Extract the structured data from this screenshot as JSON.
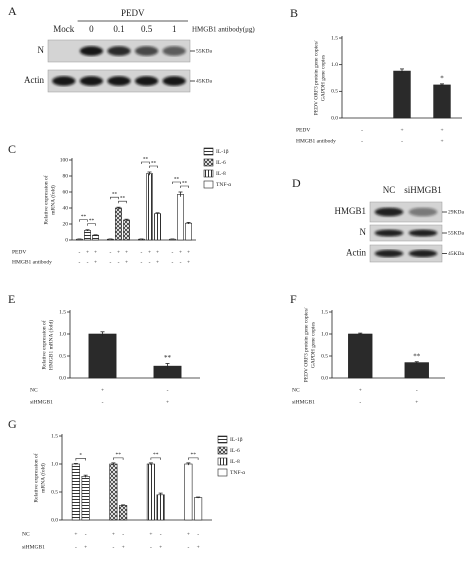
{
  "panels": {
    "A": {
      "label": "A",
      "group": "PEDV",
      "lanes": [
        "Mock",
        "0",
        "0.1",
        "0.5",
        "1"
      ],
      "lane_title": "HMGB1 antibody(μg)",
      "bands": [
        {
          "name": "N",
          "size": "55KDa"
        },
        {
          "name": "Actin",
          "size": "45KDa"
        }
      ]
    },
    "D": {
      "label": "D",
      "lanes": [
        "NC",
        "siHMGB1"
      ],
      "bands": [
        {
          "name": "HMGB1",
          "size": "29KDa"
        },
        {
          "name": "N",
          "size": "55KDa"
        },
        {
          "name": "Actin",
          "size": "45KDa"
        }
      ]
    }
  },
  "chart_data": [
    {
      "type": "bar",
      "label": "B",
      "ylabel": [
        "PEDV ORF3 protein gene copies/",
        "GAPDH gene copies"
      ],
      "values": [
        0,
        0.88,
        0.62
      ],
      "errors": [
        0,
        0.04,
        0.02
      ],
      "color": "#2a2a2a",
      "annotations": [
        null,
        null,
        "*"
      ],
      "ylim": [
        0,
        1.5
      ],
      "yticks": [
        {
          "value": 0,
          "label": "0.0"
        },
        {
          "value": 0.5,
          "label": "0.5"
        },
        {
          "value": 1,
          "label": "1.0"
        },
        {
          "value": 1.5,
          "label": "1.5"
        }
      ],
      "rows": [
        {
          "name": "PEDV",
          "labels": [
            "-",
            "+",
            "+"
          ]
        },
        {
          "name": "HMGB1 antibody",
          "labels": [
            "-",
            "-",
            "+"
          ]
        }
      ]
    },
    {
      "type": "grouped_bar",
      "label": "C",
      "ylabel": [
        "Relative expression of",
        "mRNA (fold)"
      ],
      "series": [
        {
          "name": "IL-1β",
          "pattern": "hlines",
          "values": [
            1,
            12,
            6
          ],
          "errors": [
            0.3,
            0.8,
            0.5
          ],
          "annotations": [
            "**",
            "**"
          ]
        },
        {
          "name": "IL-6",
          "pattern": "cross",
          "values": [
            1,
            40,
            25
          ],
          "errors": [
            0.3,
            1,
            1
          ],
          "annotations": [
            "**",
            "**"
          ]
        },
        {
          "name": "IL-8",
          "pattern": "vlines",
          "values": [
            1,
            83,
            33
          ],
          "errors": [
            0.3,
            2,
            1
          ],
          "annotations": [
            "**",
            "**"
          ]
        },
        {
          "name": "TNF-α",
          "pattern": "none",
          "values": [
            1,
            57,
            21
          ],
          "errors": [
            0.3,
            3,
            1
          ],
          "annotations": [
            "**",
            "**"
          ]
        }
      ],
      "ylim": [
        0,
        100
      ],
      "yticks": [
        0,
        20,
        40,
        60,
        80,
        100
      ],
      "rows": [
        {
          "name": "PEDV",
          "labels": [
            "-",
            "+",
            "+"
          ]
        },
        {
          "name": "HMGB1 antibody",
          "labels": [
            "-",
            "-",
            "+"
          ]
        }
      ]
    },
    {
      "type": "bar",
      "label": "E",
      "ylabel": [
        "Relative expression of",
        "HMGB1 mRNA (fold)"
      ],
      "values": [
        1.0,
        0.27
      ],
      "errors": [
        0.05,
        0.06
      ],
      "color": "#2a2a2a",
      "annotations": [
        null,
        "**"
      ],
      "ylim": [
        0,
        1.5
      ],
      "yticks": [
        {
          "value": 0,
          "label": "0.0"
        },
        {
          "value": 0.5,
          "label": "0.5"
        },
        {
          "value": 1,
          "label": "1.0"
        },
        {
          "value": 1.5,
          "label": "1.5"
        }
      ],
      "rows": [
        {
          "name": "NC",
          "labels": [
            "+",
            "-"
          ]
        },
        {
          "name": "siHMGB1",
          "labels": [
            "-",
            "+"
          ]
        }
      ]
    },
    {
      "type": "bar",
      "label": "F",
      "ylabel": [
        "PEDV ORF3 protein gene copies/",
        "GAPDH gene copies"
      ],
      "values": [
        1.0,
        0.35
      ],
      "errors": [
        0.02,
        0.02
      ],
      "color": "#2a2a2a",
      "annotations": [
        null,
        "**"
      ],
      "ylim": [
        0,
        1.5
      ],
      "yticks": [
        {
          "value": 0,
          "label": "0.0"
        },
        {
          "value": 0.5,
          "label": "0.5"
        },
        {
          "value": 1,
          "label": "1.0"
        },
        {
          "value": 1.5,
          "label": "1.5"
        }
      ],
      "rows": [
        {
          "name": "NC",
          "labels": [
            "+",
            "-"
          ]
        },
        {
          "name": "siHMGB1",
          "labels": [
            "-",
            "+"
          ]
        }
      ]
    },
    {
      "type": "grouped_bar",
      "label": "G",
      "ylabel": [
        "Relative expression of",
        "mRNA (fold)"
      ],
      "series": [
        {
          "name": "IL-1β",
          "pattern": "hlines",
          "values": [
            1.0,
            0.78
          ],
          "errors": [
            0.01,
            0.02
          ],
          "annotations": [
            "*"
          ]
        },
        {
          "name": "IL-6",
          "pattern": "cross",
          "values": [
            1.0,
            0.26
          ],
          "errors": [
            0.02,
            0.01
          ],
          "annotations": [
            "**"
          ]
        },
        {
          "name": "IL-8",
          "pattern": "vlines",
          "values": [
            1.0,
            0.45
          ],
          "errors": [
            0.02,
            0.03
          ],
          "annotations": [
            "**"
          ]
        },
        {
          "name": "TNF-α",
          "pattern": "none",
          "values": [
            1.0,
            0.4
          ],
          "errors": [
            0.02,
            0.01
          ],
          "annotations": [
            "**"
          ]
        }
      ],
      "ylim": [
        0,
        1.5
      ],
      "yticks": [
        {
          "value": 0,
          "label": "0.0"
        },
        {
          "value": 0.5,
          "label": "0.5"
        },
        {
          "value": 1,
          "label": "1.0"
        },
        {
          "value": 1.5,
          "label": "1.5"
        }
      ],
      "rows": [
        {
          "name": "NC",
          "labels": [
            "+",
            "-"
          ]
        },
        {
          "name": "siHMGB1",
          "labels": [
            "-",
            "+"
          ]
        }
      ]
    }
  ]
}
